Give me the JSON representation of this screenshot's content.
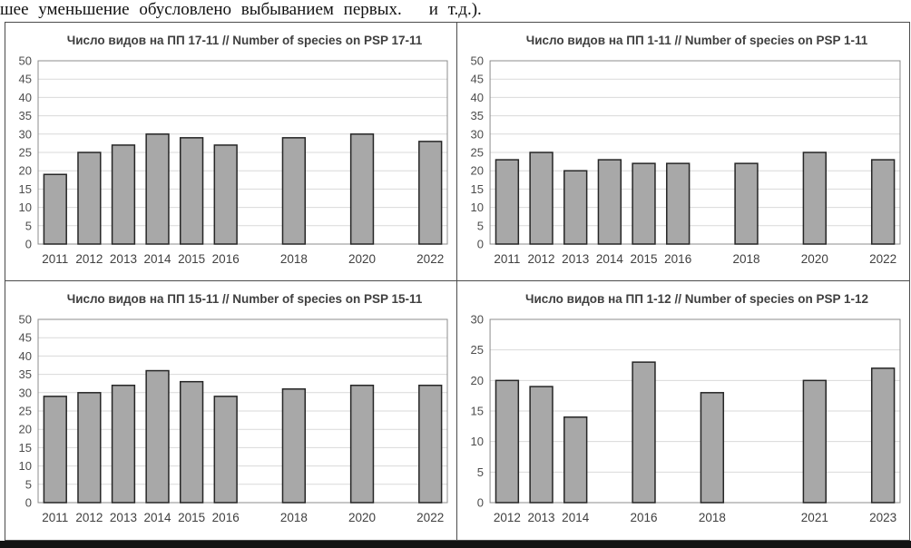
{
  "page": {
    "top_text": "шее уменьшение обусловлено выбыванием первых.",
    "top_text_tail": "и т.д.)."
  },
  "style": {
    "bar_color": "#a8a8a8",
    "bar_border": "#262626",
    "grid_color": "#d9d9d9",
    "axis_color": "#8c8c8c",
    "label_color": "#4d4d4d"
  },
  "chart_data": [
    {
      "type": "bar",
      "title": "Число видов на ПП 17-11 // Number of species on PSP 17-11",
      "x_range": [
        2011,
        2022
      ],
      "categories": [
        "2011",
        "2012",
        "2013",
        "2014",
        "2015",
        "2016",
        "2018",
        "2020",
        "2022"
      ],
      "values": [
        19,
        25,
        27,
        30,
        29,
        27,
        29,
        30,
        28
      ],
      "ylim": [
        0,
        50
      ],
      "yticks": [
        0,
        5,
        10,
        15,
        20,
        25,
        30,
        35,
        40,
        45,
        50
      ],
      "grid": "on",
      "legend": "none"
    },
    {
      "type": "bar",
      "title": "Число видов на ПП 1-11  // Number of species on PSP 1-11",
      "x_range": [
        2011,
        2022
      ],
      "categories": [
        "2011",
        "2012",
        "2013",
        "2014",
        "2015",
        "2016",
        "2018",
        "2020",
        "2022"
      ],
      "values": [
        23,
        25,
        20,
        23,
        22,
        22,
        22,
        25,
        23
      ],
      "ylim": [
        0,
        50
      ],
      "yticks": [
        0,
        5,
        10,
        15,
        20,
        25,
        30,
        35,
        40,
        45,
        50
      ],
      "grid": "on",
      "legend": "none"
    },
    {
      "type": "bar",
      "title": "Число видов на ПП 15-11 // Number of species on PSP 15-11",
      "x_range": [
        2011,
        2022
      ],
      "categories": [
        "2011",
        "2012",
        "2013",
        "2014",
        "2015",
        "2016",
        "2018",
        "2020",
        "2022"
      ],
      "values": [
        29,
        30,
        32,
        36,
        33,
        29,
        31,
        32,
        32
      ],
      "ylim": [
        0,
        50
      ],
      "yticks": [
        0,
        5,
        10,
        15,
        20,
        25,
        30,
        35,
        40,
        45,
        50
      ],
      "grid": "on",
      "legend": "none"
    },
    {
      "type": "bar",
      "title": "Число видов на ПП 1-12 // Number of species on PSP 1-12",
      "x_range": [
        2012,
        2023
      ],
      "categories": [
        "2012",
        "2013",
        "2014",
        "2016",
        "2018",
        "2021",
        "2023"
      ],
      "values": [
        20,
        19,
        14,
        23,
        18,
        20,
        22
      ],
      "ylim": [
        0,
        30
      ],
      "yticks": [
        0,
        5,
        10,
        15,
        20,
        25,
        30
      ],
      "grid": "on",
      "legend": "none"
    }
  ]
}
